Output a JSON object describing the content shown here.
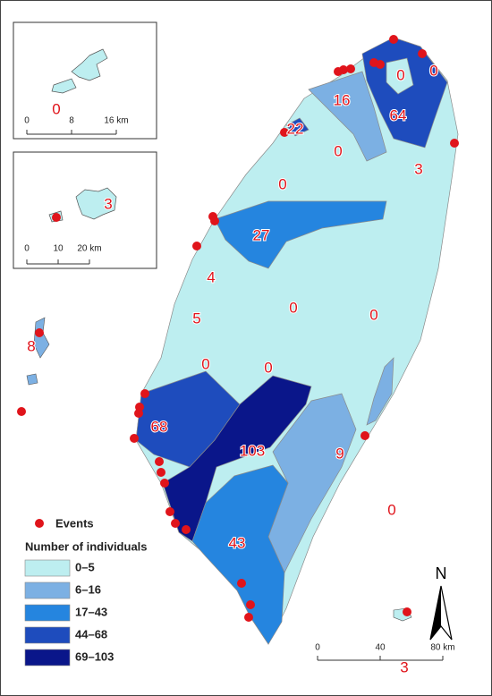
{
  "map": {
    "labels": [
      0,
      0,
      16,
      64,
      22,
      0,
      3,
      0,
      27,
      4,
      0,
      0,
      5,
      0,
      0,
      8,
      68,
      103,
      9,
      0,
      43,
      3
    ],
    "insets": [
      {
        "label": 0,
        "scale": [
          "0",
          "8",
          "16 km"
        ]
      },
      {
        "label": 3,
        "scale": [
          "0",
          "10",
          "20 km"
        ]
      }
    ],
    "legend": {
      "events": "Events",
      "title": "Number of individuals",
      "classes": [
        {
          "label": "0–5",
          "color": "#bdeef0"
        },
        {
          "label": "6–16",
          "color": "#7cb0e3"
        },
        {
          "label": "17–43",
          "color": "#2585df"
        },
        {
          "label": "44–68",
          "color": "#1e4cbd"
        },
        {
          "label": "69–103",
          "color": "#0a168a"
        }
      ]
    },
    "scale": [
      "0",
      "40",
      "80 km"
    ],
    "north": "N"
  }
}
